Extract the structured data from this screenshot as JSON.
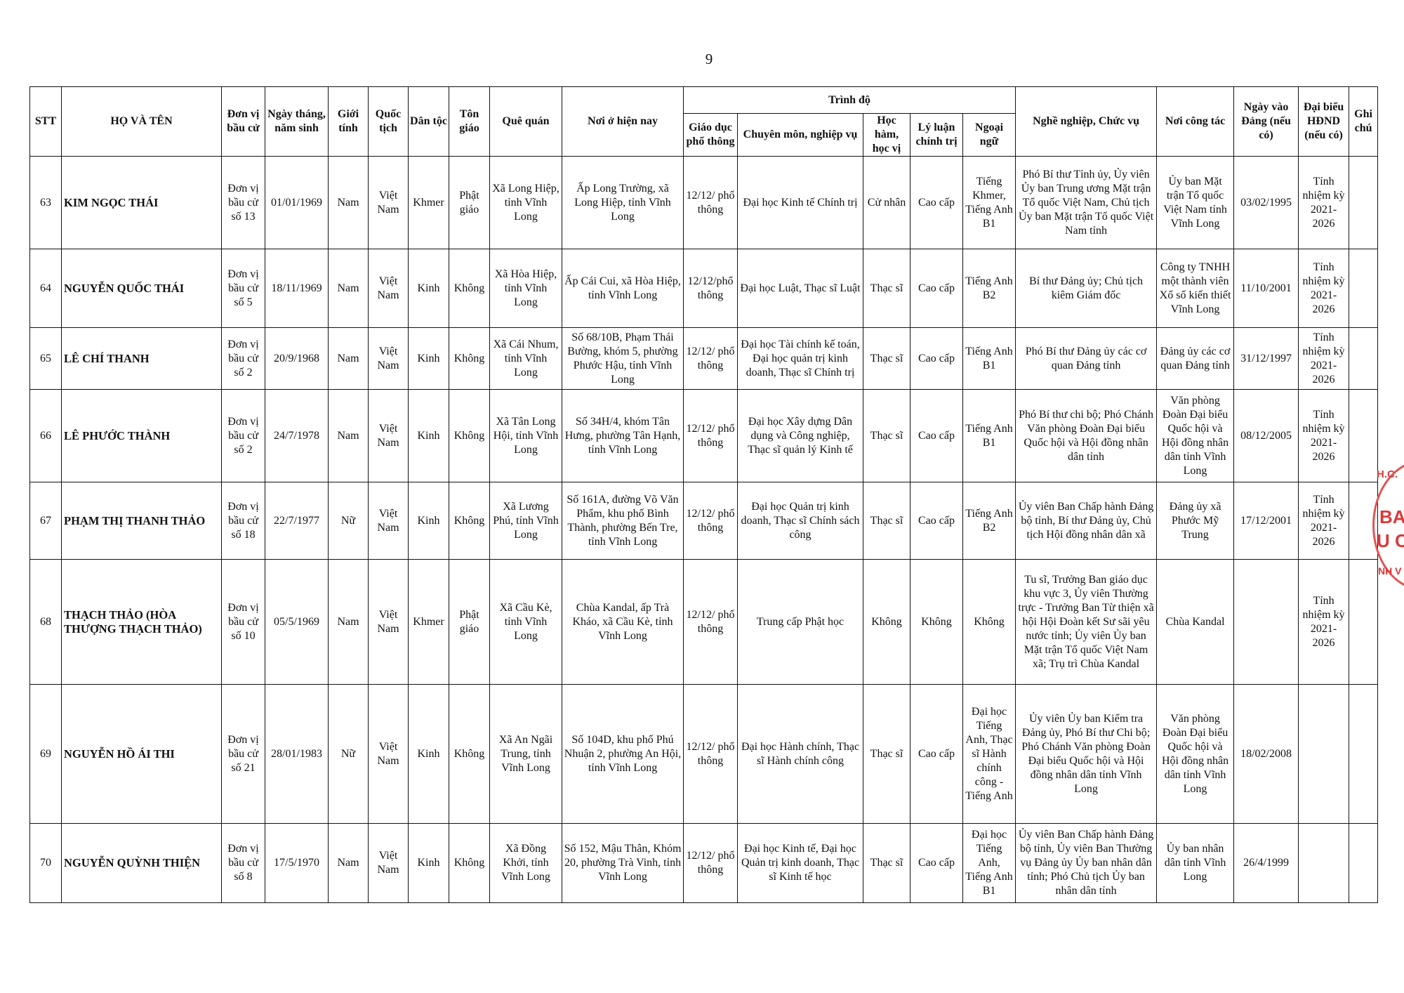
{
  "page_number": "9",
  "header": {
    "stt": "STT",
    "name": "HỌ VÀ TÊN",
    "unit": "Đơn vị bầu cử",
    "dob": "Ngày tháng, năm sinh",
    "gender": "Giới tính",
    "nationality": "Quốc tịch",
    "ethnicity": "Dân tộc",
    "religion": "Tôn giáo",
    "hometown": "Quê quán",
    "residence": "Nơi ở hiện nay",
    "level_group": "Trình độ",
    "edu": "Giáo dục phổ thông",
    "specialty": "Chuyên môn, nghiệp vụ",
    "degree": "Học hàm, học vị",
    "politics": "Lý luận chính trị",
    "language": "Ngoại ngữ",
    "job": "Nghề nghiệp, Chức vụ",
    "workplace": "Nơi công tác",
    "party_date": "Ngày vào Đảng (nếu có)",
    "hdnd": "Đại biểu HĐND (nếu có)",
    "note": "Ghi chú"
  },
  "rows": [
    {
      "stt": "63",
      "name": "KIM NGỌC THÁI",
      "unit": "Đơn vị bầu cử số 13",
      "dob": "01/01/1969",
      "gender": "Nam",
      "nationality": "Việt Nam",
      "ethnicity": "Khmer",
      "religion": "Phật giáo",
      "hometown": "Xã Long Hiệp, tỉnh Vĩnh Long",
      "residence": "Ấp Long Trường, xã Long Hiệp, tỉnh Vĩnh Long",
      "edu": "12/12/ phổ thông",
      "specialty": "Đại học Kinh tế Chính trị",
      "degree": "Cử nhân",
      "politics": "Cao cấp",
      "language": "Tiếng Khmer, Tiếng Anh B1",
      "job": "Phó Bí thư Tỉnh ủy, Ủy viên Ủy ban Trung ương Mặt trận Tổ quốc Việt Nam, Chủ tịch Ủy ban Mặt trận Tổ quốc Việt Nam tỉnh",
      "workplace": "Ủy ban Mặt trận Tổ quốc Việt Nam tỉnh Vĩnh Long",
      "party_date": "03/02/1995",
      "hdnd": "Tỉnh nhiệm kỳ 2021-2026",
      "note": ""
    },
    {
      "stt": "64",
      "name": "NGUYỄN QUỐC THÁI",
      "unit": "Đơn vị bầu cử số 5",
      "dob": "18/11/1969",
      "gender": "Nam",
      "nationality": "Việt Nam",
      "ethnicity": "Kinh",
      "religion": "Không",
      "hometown": "Xã Hòa Hiệp, tỉnh Vĩnh Long",
      "residence": "Ấp Cái Cui, xã Hòa Hiệp, tỉnh Vĩnh Long",
      "edu": "12/12/phổ thông",
      "specialty": "Đại học Luật, Thạc sĩ Luật",
      "degree": "Thạc sĩ",
      "politics": "Cao cấp",
      "language": "Tiếng Anh B2",
      "job": "Bí thư Đảng ủy; Chủ tịch kiêm Giám đốc",
      "workplace": "Công ty TNHH một thành viên Xổ số kiến thiết Vĩnh Long",
      "party_date": "11/10/2001",
      "hdnd": "Tỉnh nhiệm kỳ 2021-2026",
      "note": ""
    },
    {
      "stt": "65",
      "name": "LÊ CHÍ THANH",
      "unit": "Đơn vị bầu cử số 2",
      "dob": "20/9/1968",
      "gender": "Nam",
      "nationality": "Việt Nam",
      "ethnicity": "Kinh",
      "religion": "Không",
      "hometown": "Xã Cái Nhum, tỉnh Vĩnh Long",
      "residence": "Số 68/10B, Phạm Thái Bường, khóm 5, phường Phước Hậu, tỉnh Vĩnh Long",
      "edu": "12/12/ phổ thông",
      "specialty": "Đại học Tài chính kế toán, Đại học quản trị kinh doanh, Thạc sĩ Chính trị",
      "degree": "Thạc sĩ",
      "politics": "Cao cấp",
      "language": "Tiếng Anh B1",
      "job": "Phó Bí thư Đảng ủy các cơ quan Đảng tỉnh",
      "workplace": "Đảng ủy các cơ quan Đảng tỉnh",
      "party_date": "31/12/1997",
      "hdnd": "Tỉnh nhiệm kỳ 2021-2026",
      "note": ""
    },
    {
      "stt": "66",
      "name": "LÊ PHƯỚC THÀNH",
      "unit": "Đơn vị bầu cử số 2",
      "dob": "24/7/1978",
      "gender": "Nam",
      "nationality": "Việt Nam",
      "ethnicity": "Kinh",
      "religion": "Không",
      "hometown": "Xã Tân Long Hội, tỉnh Vĩnh Long",
      "residence": "Số 34H/4, khóm Tân Hưng, phường Tân Hạnh, tỉnh Vĩnh Long",
      "edu": "12/12/ phổ thông",
      "specialty": "Đại học Xây dựng Dân dụng và Công nghiệp, Thạc sĩ quản lý Kinh tế",
      "degree": "Thạc sĩ",
      "politics": "Cao cấp",
      "language": "Tiếng Anh B1",
      "job": "Phó Bí thư chi bộ; Phó Chánh Văn phòng Đoàn Đại biểu Quốc hội và Hội đồng nhân dân tỉnh",
      "workplace": "Văn phòng Đoàn Đại biểu Quốc hội và Hội đồng nhân dân tỉnh Vĩnh Long",
      "party_date": "08/12/2005",
      "hdnd": "Tỉnh nhiệm kỳ 2021-2026",
      "note": ""
    },
    {
      "stt": "67",
      "name": "PHẠM THỊ THANH THẢO",
      "unit": "Đơn vị bầu cử số 18",
      "dob": "22/7/1977",
      "gender": "Nữ",
      "nationality": "Việt Nam",
      "ethnicity": "Kinh",
      "religion": "Không",
      "hometown": "Xã Lương Phú, tỉnh Vĩnh Long",
      "residence": "Số 161A, đường Võ Văn Phẩm, khu phố Bình Thành, phường Bến Tre, tỉnh Vĩnh Long",
      "edu": "12/12/ phổ thông",
      "specialty": "Đại học Quản trị kinh doanh, Thạc sĩ Chính sách công",
      "degree": "Thạc sĩ",
      "politics": "Cao cấp",
      "language": "Tiếng Anh B2",
      "job": "Ủy viên Ban Chấp hành Đảng bộ tỉnh, Bí thư Đảng ủy, Chủ tịch Hội đồng nhân dân xã",
      "workplace": "Đảng ủy xã Phước Mỹ Trung",
      "party_date": "17/12/2001",
      "hdnd": "Tỉnh nhiệm kỳ 2021-2026",
      "note": ""
    },
    {
      "stt": "68",
      "name": "THẠCH THẢO (HÒA THƯỢNG THẠCH THẢO)",
      "unit": "Đơn vị bầu cử số 10",
      "dob": "05/5/1969",
      "gender": "Nam",
      "nationality": "Việt Nam",
      "ethnicity": "Khmer",
      "religion": "Phật giáo",
      "hometown": "Xã Cầu Kè, tỉnh Vĩnh Long",
      "residence": "Chùa Kandal, ấp Trà Kháo, xã Cầu Kè, tỉnh Vĩnh Long",
      "edu": "12/12/ phổ thông",
      "specialty": "Trung cấp Phật học",
      "degree": "Không",
      "politics": "Không",
      "language": "Không",
      "job": "Tu sĩ, Trưởng Ban giáo dục khu vực 3, Ủy viên Thường trực - Trưởng Ban Từ thiện xã hội Hội Đoàn kết Sư sãi yêu nước tỉnh; Ủy viên Ủy ban Mặt trận Tổ quốc Việt Nam xã; Trụ trì Chùa Kandal",
      "workplace": "Chùa Kandal",
      "party_date": "",
      "hdnd": "Tỉnh nhiệm kỳ 2021-2026",
      "note": ""
    },
    {
      "stt": "69",
      "name": "NGUYỄN HỒ ÁI THI",
      "unit": "Đơn vị bầu cử số 21",
      "dob": "28/01/1983",
      "gender": "Nữ",
      "nationality": "Việt Nam",
      "ethnicity": "Kinh",
      "religion": "Không",
      "hometown": "Xã An Ngãi Trung, tỉnh Vĩnh Long",
      "residence": "Số 104D, khu phố Phú Nhuận 2, phường An Hội, tỉnh Vĩnh Long",
      "edu": "12/12/ phổ thông",
      "specialty": "Đại học Hành chính, Thạc sĩ Hành chính công",
      "degree": "Thạc sĩ",
      "politics": "Cao cấp",
      "language": "Đại học Tiếng Anh, Thạc sĩ Hành chính công - Tiếng Anh",
      "job": "Ủy viên Ủy ban Kiểm tra Đảng ủy, Phó Bí thư Chi bộ; Phó Chánh Văn phòng Đoàn Đại biểu Quốc hội và Hội đồng nhân dân tỉnh Vĩnh Long",
      "workplace": "Văn phòng Đoàn Đại biểu Quốc hội và Hội đồng nhân dân tỉnh Vĩnh Long",
      "party_date": "18/02/2008",
      "hdnd": "",
      "note": ""
    },
    {
      "stt": "70",
      "name": "NGUYỄN QUỲNH THIỆN",
      "unit": "Đơn vị bầu cử số 8",
      "dob": "17/5/1970",
      "gender": "Nam",
      "nationality": "Việt Nam",
      "ethnicity": "Kinh",
      "religion": "Không",
      "hometown": "Xã Đồng Khởi, tỉnh Vĩnh Long",
      "residence": "Số 152, Mậu Thân, Khóm 20, phường Trà Vinh, tỉnh Vĩnh Long",
      "edu": "12/12/ phổ thông",
      "specialty": "Đại học Kinh tế, Đại học Quản trị kinh doanh, Thạc sĩ Kinh tế học",
      "degree": "Thạc sĩ",
      "politics": "Cao cấp",
      "language": "Đại học Tiếng Anh, Tiếng Anh B1",
      "job": "Ủy viên Ban Chấp hành Đảng bộ tỉnh, Ủy viên Ban Thường vụ Đảng ủy Ủy ban nhân dân tỉnh; Phó Chủ tịch Ủy ban nhân dân tỉnh",
      "workplace": "Ủy ban nhân dân tỉnh Vĩnh Long",
      "party_date": "26/4/1999",
      "hdnd": "",
      "note": ""
    }
  ],
  "stamp": {
    "color": "#d93a3a",
    "fragments": [
      "H.C.",
      "BA",
      "U C",
      "NH V"
    ]
  }
}
